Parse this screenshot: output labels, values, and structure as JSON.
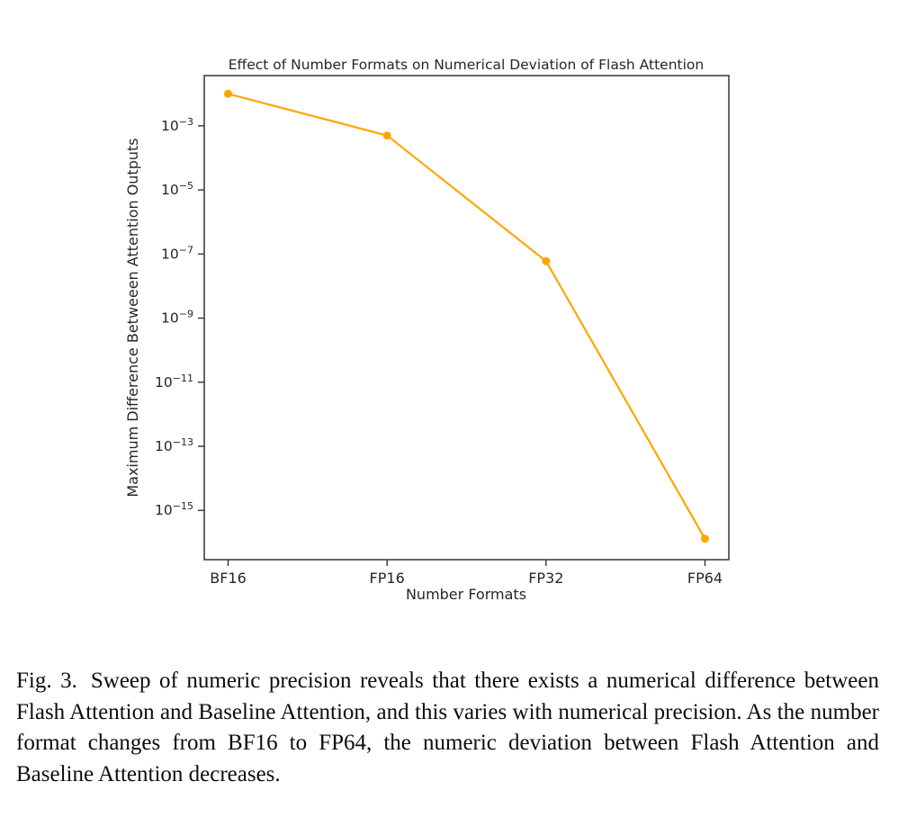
{
  "figure": {
    "caption": {
      "label": "Fig. 3.",
      "text": "Sweep of numeric precision reveals that there exists a numerical difference between Flash Attention and Baseline Attention, and this varies with numerical precision. As the number format changes from BF16 to FP64, the numeric deviation between Flash Attention and Baseline Attention decreases."
    }
  },
  "chart_data": {
    "type": "line",
    "title": "Effect of Number Formats on Numerical Deviation of Flash Attention",
    "xlabel": "Number Formats",
    "ylabel": "Maximum Difference Betweeen Attention Outputs",
    "categories": [
      "BF16",
      "FP16",
      "FP32",
      "FP64"
    ],
    "values": [
      0.01,
      0.0005,
      6e-08,
      1.3e-16
    ],
    "yscale": "log",
    "ylim": [
      2.9e-17,
      0.037
    ],
    "ytick_exponents": [
      -3,
      -5,
      -7,
      -9,
      -11,
      -13,
      -15
    ],
    "line_color": "#FFA500",
    "axis_color": "#333333",
    "text_color": "#262626",
    "marker": "circle",
    "grid": false,
    "legend_position": "none"
  }
}
